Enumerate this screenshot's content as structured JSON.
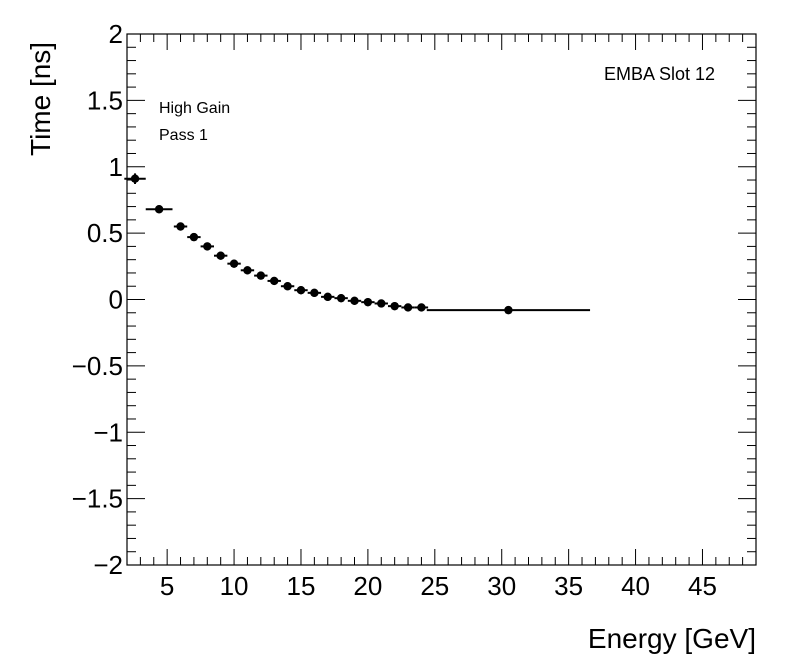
{
  "chart_data": {
    "type": "scatter",
    "title": "",
    "xlabel": "Energy [GeV]",
    "ylabel": "Time [ns]",
    "xlim": [
      2,
      49
    ],
    "ylim": [
      -2,
      2
    ],
    "xticks": [
      5,
      10,
      15,
      20,
      25,
      30,
      35,
      40,
      45
    ],
    "xtick_labels": [
      "5",
      "10",
      "15",
      "20",
      "25",
      "30",
      "35",
      "40",
      "45"
    ],
    "yticks": [
      -2,
      -1.5,
      -1,
      -0.5,
      0,
      0.5,
      1,
      1.5,
      2
    ],
    "ytick_labels": [
      "−2",
      "−1.5",
      "−1",
      "−0.5",
      "0",
      "0.5",
      "1",
      "1.5",
      "2"
    ],
    "grid": false,
    "annotations": {
      "gain": "High Gain",
      "pass": "Pass 1",
      "slot": "EMBA Slot 12"
    },
    "series": [
      {
        "name": "Pass 1",
        "x": [
          2.6,
          4.4,
          6.0,
          7.0,
          8.0,
          9.0,
          10.0,
          11.0,
          12.0,
          13.0,
          14.0,
          15.0,
          16.0,
          17.0,
          18.0,
          19.0,
          20.0,
          21.0,
          22.0,
          23.0,
          24.0,
          30.5
        ],
        "y": [
          0.91,
          0.68,
          0.55,
          0.47,
          0.4,
          0.33,
          0.27,
          0.22,
          0.18,
          0.14,
          0.1,
          0.07,
          0.05,
          0.02,
          0.01,
          -0.01,
          -0.02,
          -0.03,
          -0.05,
          -0.06,
          -0.06,
          -0.08
        ],
        "xerr": [
          0.8,
          1.0,
          0.5,
          0.5,
          0.5,
          0.5,
          0.5,
          0.5,
          0.5,
          0.5,
          0.5,
          0.5,
          0.5,
          0.5,
          0.5,
          0.5,
          0.5,
          0.5,
          0.5,
          0.5,
          0.5,
          6.1
        ],
        "yerr": [
          0.04,
          0.03,
          0.03,
          0.03,
          0.03,
          0.03,
          0.03,
          0.03,
          0.03,
          0.03,
          0.03,
          0.03,
          0.03,
          0.03,
          0.03,
          0.03,
          0.03,
          0.03,
          0.03,
          0.03,
          0.03,
          0.01
        ]
      }
    ]
  }
}
